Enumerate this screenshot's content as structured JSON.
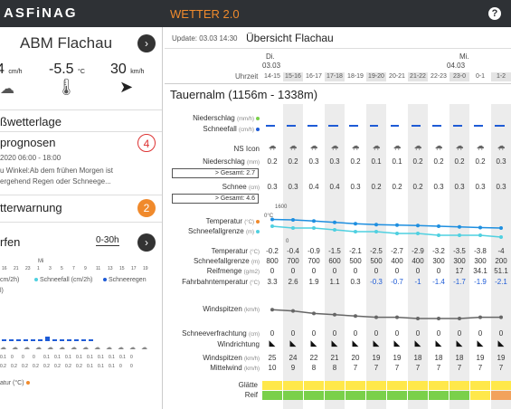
{
  "topbar": {
    "logo": "ASFiNAG",
    "title": "WETTER 2.0",
    "help": "?"
  },
  "station": {
    "name": "ABM Flachau",
    "snow": "4",
    "snow_unit": "cm/h",
    "temp": "-5.5",
    "temp_unit": "°C",
    "wind": "30",
    "wind_unit": "km/h"
  },
  "sections": {
    "grosswetterlage": "ßwetterlage",
    "prognosen": "prognosen",
    "prognosen_badge": "4",
    "prognosen_time": "2020 06:00 - 18:00",
    "prognosen_text1": "u Winkel:Ab dem frühen Morgen ist",
    "prognosen_text2": "ergehend Regen oder Schneege...",
    "warnung": "tterwarnung",
    "warnung_badge": "2",
    "verlauf": "rfen",
    "verlauf_range": "0-30h",
    "mini_day": "Mi",
    "mini_hours": [
      "16",
      "21",
      "23",
      "1",
      "3",
      "5",
      "7",
      "9",
      "11",
      "13",
      "15",
      "17",
      "19"
    ],
    "legend_schnee": "Schneefall (cm/2h)",
    "legend_regen": "Schneeregen",
    "legend_l": "l)",
    "legend_cm": "cm/2h)",
    "mini_row1": [
      "0.1",
      "0",
      "0",
      "0",
      "0.1",
      "0.1",
      "0.1",
      "0.1",
      "0.1",
      "0.1",
      "0.1",
      "0.1",
      "0"
    ],
    "mini_row2": [
      "0.2",
      "0.2",
      "0.2",
      "0.2",
      "0.2",
      "0.2",
      "0.2",
      "0.2",
      "0.1",
      "0.1",
      "0.1",
      "0",
      "0"
    ],
    "mini_temp_label": "atur (°C)"
  },
  "right": {
    "update": "Update: 03.03 14:30",
    "title": "Übersicht Flachau",
    "day1": "Di.",
    "date1": "03.03",
    "day2": "Mi.",
    "date2": "04.03",
    "uhrzeit": "Uhrzeit",
    "hours": [
      "14-15",
      "15-16",
      "16-17",
      "17-18",
      "18-19",
      "19-20",
      "20-21",
      "21-22",
      "22-23",
      "23-0",
      "0-1",
      "1-2"
    ],
    "location": "Tauernalm (1156m - 1338m)",
    "lbl_niederschlag": "Niederschlag",
    "unit_mmh": "(mm/h)",
    "lbl_schneefall": "Schneefall",
    "unit_cmh": "(cm/h)",
    "lbl_nsicon": "NS Icon",
    "lbl_niederschlag2": "Niederschlag",
    "unit_mm": "(mm)",
    "gesamt_ns": "> Gesamt: 2.7",
    "lbl_schnee": "Schnee",
    "unit_cm": "(cm)",
    "gesamt_schnee": "> Gesamt: 4.6",
    "lbl_temperatur": "Temperatur",
    "unit_c": "(°C)",
    "lbl_sfg": "Schneefallgrenze",
    "unit_m": "(m)",
    "axis_top": "1600",
    "axis_0c": "0°C",
    "axis_bottom": "0",
    "lbl_temp2": "Temperatur",
    "lbl_sfg2": "Schneefallgrenze",
    "lbl_reif": "Reifmenge",
    "unit_gm2": "(g/m2)",
    "lbl_fahrbahn": "Fahrbahntemperatur",
    "lbl_windspitzen": "Windspitzen",
    "unit_kmh": "(km/h)",
    "lbl_verfrachtung": "Schneeverfrachtung",
    "lbl_windrichtung": "Windrichtung",
    "lbl_windspitzen2": "Windspitzen",
    "lbl_mittelwind": "Mittelwind",
    "lbl_glaette": "Glätte",
    "lbl_reif2": "Reif",
    "niederschlag": [
      "0.2",
      "0.2",
      "0.3",
      "0.3",
      "0.2",
      "0.1",
      "0.1",
      "0.2",
      "0.2",
      "0.2",
      "0.2",
      "0.3"
    ],
    "schnee": [
      "0.3",
      "0.3",
      "0.4",
      "0.4",
      "0.3",
      "0.2",
      "0.2",
      "0.2",
      "0.3",
      "0.3",
      "0.3",
      "0.3"
    ],
    "temperatur": [
      "-0.2",
      "-0.4",
      "-0.9",
      "-1.5",
      "-2.1",
      "-2.5",
      "-2.7",
      "-2.9",
      "-3.2",
      "-3.5",
      "-3.8",
      "-4"
    ],
    "schneefallgrenze": [
      "800",
      "700",
      "700",
      "600",
      "500",
      "500",
      "400",
      "400",
      "300",
      "300",
      "300",
      "200"
    ],
    "reifmenge": [
      "0",
      "0",
      "0",
      "0",
      "0",
      "0",
      "0",
      "0",
      "0",
      "17",
      "34.1",
      "51.1"
    ],
    "fahrbahn": [
      "3.3",
      "2.6",
      "1.9",
      "1.1",
      "0.3",
      "-0.3",
      "-0.7",
      "-1",
      "-1.4",
      "-1.7",
      "-1.9",
      "-2.1"
    ],
    "verfrachtung": [
      "0",
      "0",
      "0",
      "0",
      "0",
      "0",
      "0",
      "0",
      "0",
      "0",
      "0",
      "0"
    ],
    "windspitzen": [
      "25",
      "24",
      "22",
      "21",
      "20",
      "19",
      "19",
      "18",
      "18",
      "18",
      "19",
      "19"
    ],
    "mittelwind": [
      "10",
      "9",
      "8",
      "8",
      "7",
      "7",
      "7",
      "7",
      "7",
      "7",
      "7",
      "7"
    ],
    "colors": {
      "accent": "#f08a2c",
      "blue": "#1e5bd6",
      "cyan": "#4fd0e0",
      "green": "#7ad04a",
      "yellow": "#ffe84a",
      "orange": "#f2a25c"
    }
  }
}
